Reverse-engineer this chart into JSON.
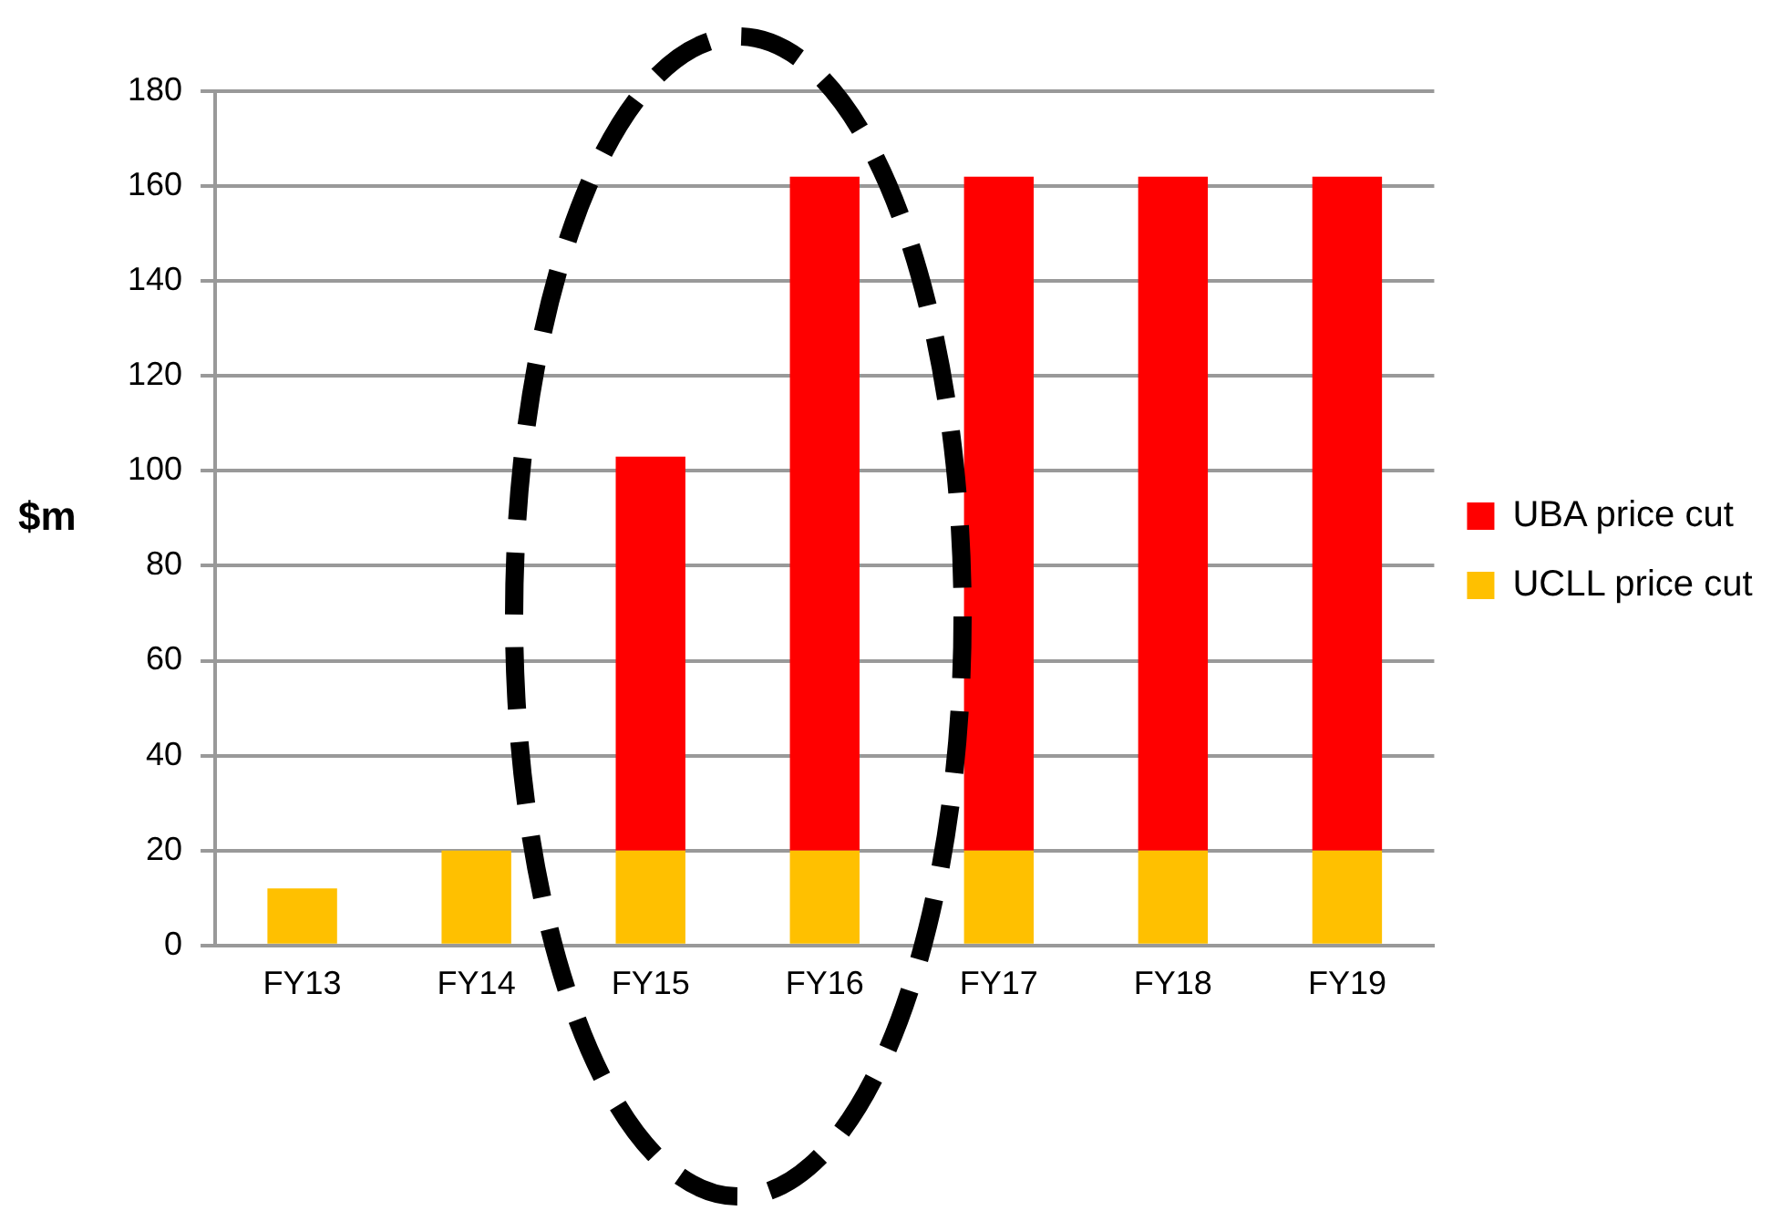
{
  "chart_data": {
    "type": "bar",
    "stacked": true,
    "ylabel": "$m",
    "categories": [
      "FY13",
      "FY14",
      "FY15",
      "FY16",
      "FY17",
      "FY18",
      "FY19"
    ],
    "series": [
      {
        "name": "UCLL price cut",
        "color": "#ffc000",
        "values": [
          12,
          20,
          20,
          20,
          20,
          20,
          20
        ]
      },
      {
        "name": "UBA price cut",
        "color": "#ff0000",
        "values": [
          0,
          0,
          83,
          142,
          142,
          142,
          142
        ]
      }
    ],
    "ylim": [
      0,
      180
    ],
    "yticks": [
      0,
      20,
      40,
      60,
      80,
      100,
      120,
      140,
      160,
      180
    ],
    "grid": "y",
    "legend": "right"
  }
}
